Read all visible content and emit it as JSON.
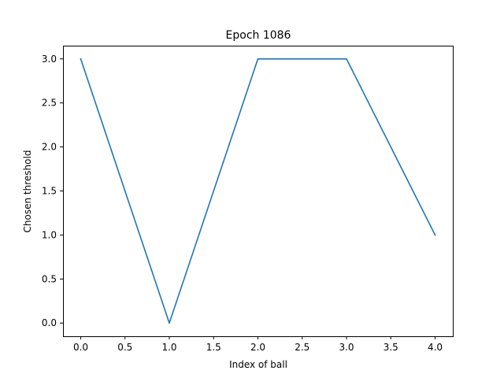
{
  "chart_data": {
    "type": "line",
    "title": "Epoch 1086",
    "xlabel": "Index of ball",
    "ylabel": "Chosen threshold",
    "x": [
      0,
      1,
      2,
      3,
      4
    ],
    "series": [
      {
        "values": [
          3,
          0,
          3,
          3,
          1
        ],
        "color": "#1f77b4"
      }
    ],
    "xlim": [
      -0.2,
      4.2
    ],
    "ylim": [
      -0.15,
      3.15
    ],
    "xticks": [
      0,
      0.5,
      1,
      1.5,
      2,
      2.5,
      3,
      3.5,
      4
    ],
    "xtick_labels": [
      "0.0",
      "0.5",
      "1.0",
      "1.5",
      "2.0",
      "2.5",
      "3.0",
      "3.5",
      "4.0"
    ],
    "yticks": [
      0,
      0.5,
      1,
      1.5,
      2,
      2.5,
      3
    ],
    "ytick_labels": [
      "0.0",
      "0.5",
      "1.0",
      "1.5",
      "2.0",
      "2.5",
      "3.0"
    ],
    "grid": false,
    "legend": "none"
  }
}
